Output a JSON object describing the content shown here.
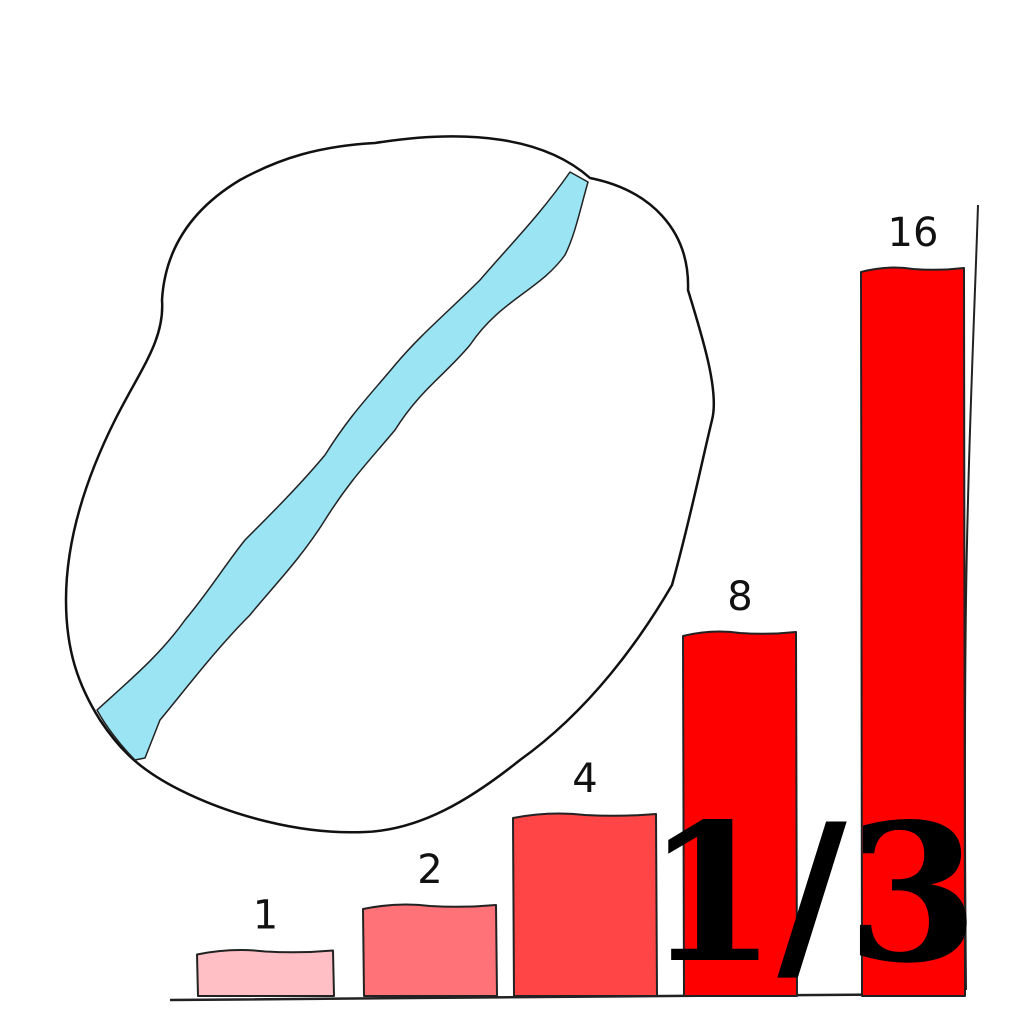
{
  "bars": [
    {
      "label": "1",
      "value": 1,
      "color": "#FFBFC5"
    },
    {
      "label": "2",
      "value": 2,
      "color": "#FF7378"
    },
    {
      "label": "4",
      "value": 4,
      "color": "#FF4545"
    },
    {
      "label": "8",
      "value": 8,
      "color": "#FF0000"
    },
    {
      "label": "16",
      "value": 16,
      "color": "#FF0000"
    }
  ],
  "circle": {
    "fill": "#ffffff",
    "stroke": "#111111",
    "stripe_color": "#9AE4F3"
  },
  "fraction_text": "1/3"
}
